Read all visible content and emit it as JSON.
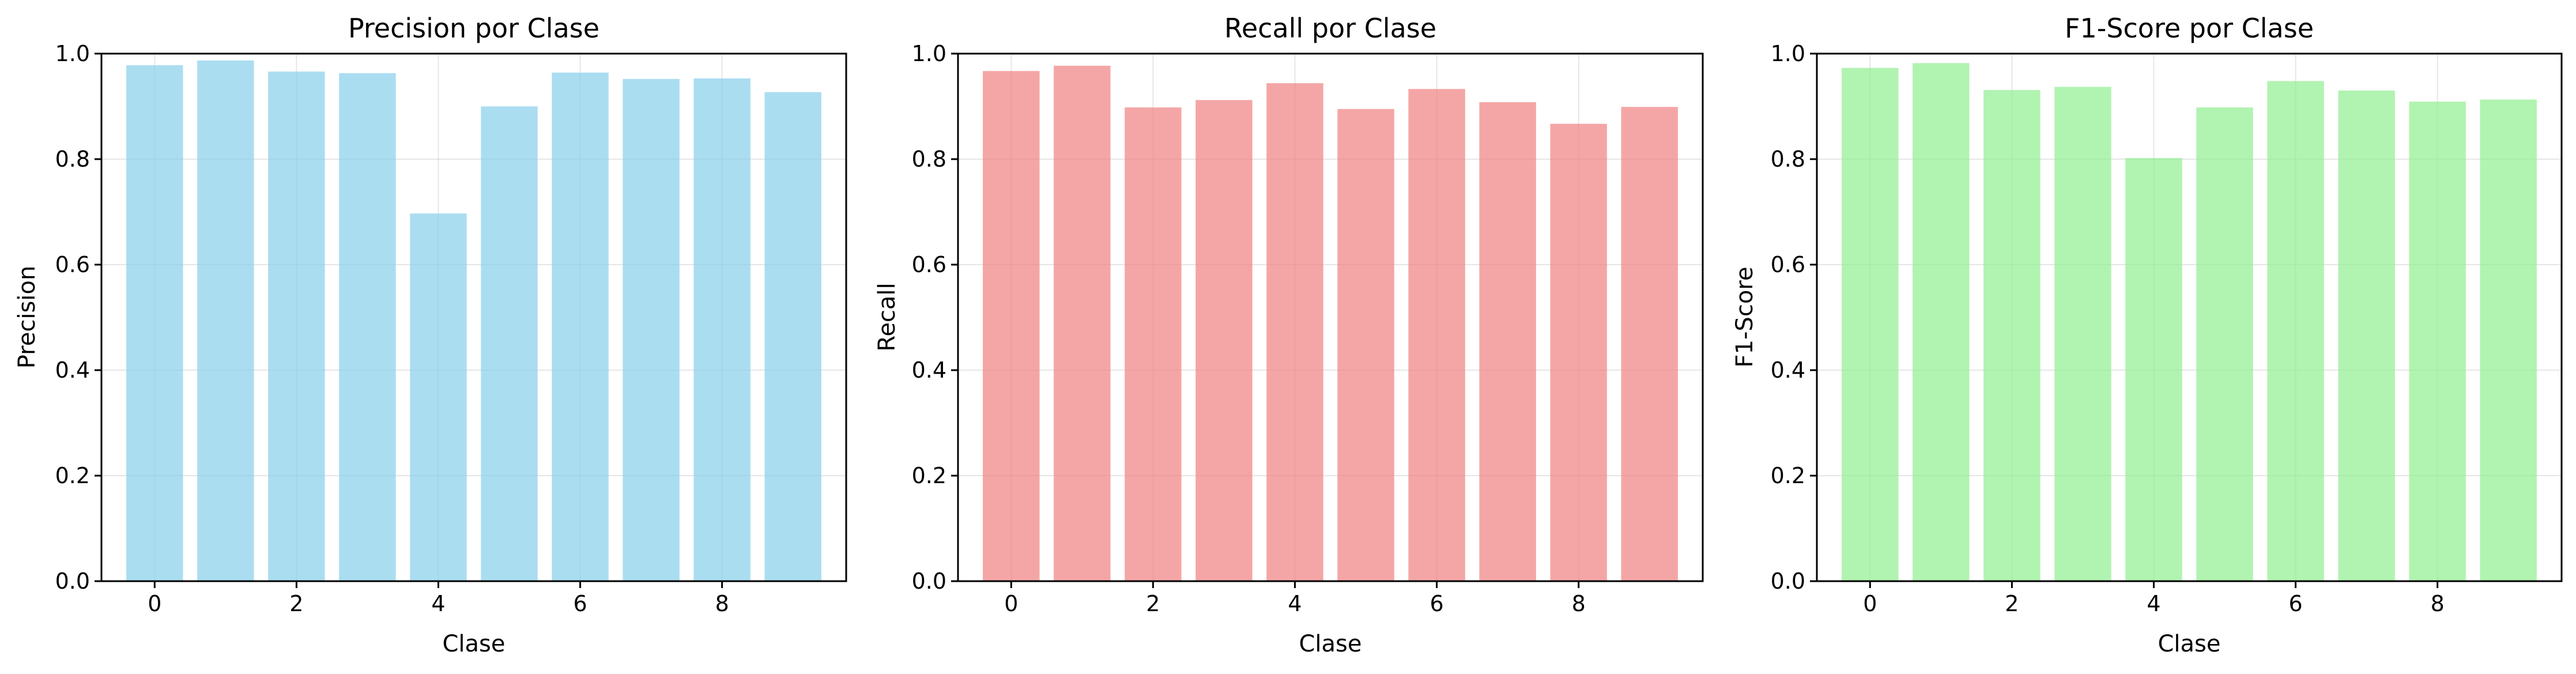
{
  "chart_data": [
    {
      "type": "bar",
      "title": "Precision por Clase",
      "xlabel": "Clase",
      "ylabel": "Precision",
      "categories": [
        "0",
        "1",
        "2",
        "3",
        "4",
        "5",
        "6",
        "7",
        "8",
        "9"
      ],
      "values": [
        0.978,
        0.987,
        0.966,
        0.963,
        0.697,
        0.9,
        0.964,
        0.952,
        0.953,
        0.927
      ],
      "color": "#87ceeb",
      "xticks": [
        0,
        2,
        4,
        6,
        8
      ],
      "xlim": [
        -0.75,
        9.75
      ],
      "yticks": [
        0.0,
        0.2,
        0.4,
        0.6,
        0.8,
        1.0
      ],
      "ylim": [
        0,
        1.0
      ],
      "grid": true
    },
    {
      "type": "bar",
      "title": "Recall por Clase",
      "xlabel": "Clase",
      "ylabel": "Recall",
      "categories": [
        "0",
        "1",
        "2",
        "3",
        "4",
        "5",
        "6",
        "7",
        "8",
        "9"
      ],
      "values": [
        0.967,
        0.977,
        0.898,
        0.912,
        0.944,
        0.895,
        0.933,
        0.908,
        0.867,
        0.899
      ],
      "color": "#f08080",
      "xticks": [
        0,
        2,
        4,
        6,
        8
      ],
      "xlim": [
        -0.75,
        9.75
      ],
      "yticks": [
        0.0,
        0.2,
        0.4,
        0.6,
        0.8,
        1.0
      ],
      "ylim": [
        0,
        1.0
      ],
      "grid": true
    },
    {
      "type": "bar",
      "title": "F1-Score por Clase",
      "xlabel": "Clase",
      "ylabel": "F1-Score",
      "categories": [
        "0",
        "1",
        "2",
        "3",
        "4",
        "5",
        "6",
        "7",
        "8",
        "9"
      ],
      "values": [
        0.973,
        0.982,
        0.931,
        0.937,
        0.802,
        0.898,
        0.948,
        0.93,
        0.909,
        0.913
      ],
      "color": "#90ee90",
      "xticks": [
        0,
        2,
        4,
        6,
        8
      ],
      "xlim": [
        -0.75,
        9.75
      ],
      "yticks": [
        0.0,
        0.2,
        0.4,
        0.6,
        0.8,
        1.0
      ],
      "ylim": [
        0,
        1.0
      ],
      "grid": true
    }
  ]
}
